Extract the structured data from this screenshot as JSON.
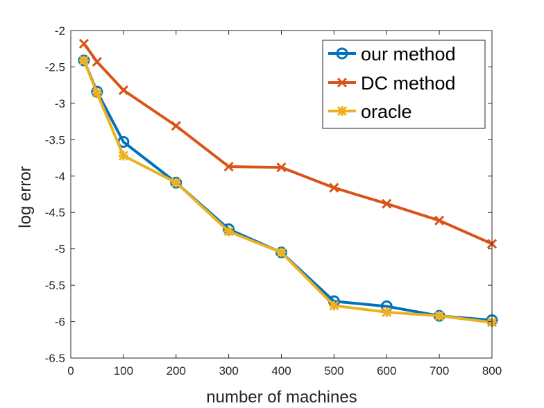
{
  "chart_data": {
    "type": "line",
    "title": "",
    "xlabel": "number of machines",
    "ylabel": "log error",
    "xlim": [
      0,
      800
    ],
    "ylim": [
      -6.5,
      -2
    ],
    "xticks": [
      0,
      100,
      200,
      300,
      400,
      500,
      600,
      700,
      800
    ],
    "yticks": [
      -6.5,
      -6,
      -5.5,
      -5,
      -4.5,
      -4,
      -3.5,
      -3,
      -2.5,
      -2
    ],
    "xtick_labels": [
      "0",
      "100",
      "200",
      "300",
      "400",
      "500",
      "600",
      "700",
      "800"
    ],
    "ytick_labels": [
      "-6.5",
      "-6",
      "-5.5",
      "-5",
      "-4.5",
      "-4",
      "-3.5",
      "-3",
      "-2.5",
      "-2"
    ],
    "grid": false,
    "legend_position": "top-right",
    "x": [
      25,
      50,
      100,
      200,
      300,
      400,
      500,
      600,
      700,
      800
    ],
    "series": [
      {
        "name": "our method",
        "color": "#0072BD",
        "marker": "circle",
        "values": [
          -2.41,
          -2.84,
          -3.53,
          -4.09,
          -4.73,
          -5.05,
          -5.72,
          -5.79,
          -5.92,
          -5.98
        ]
      },
      {
        "name": "DC method",
        "color": "#D95319",
        "marker": "x",
        "values": [
          -2.18,
          -2.43,
          -2.82,
          -3.31,
          -3.87,
          -3.88,
          -4.16,
          -4.38,
          -4.61,
          -4.93
        ]
      },
      {
        "name": "oracle",
        "color": "#EDB120",
        "marker": "star",
        "values": [
          -2.41,
          -2.86,
          -3.72,
          -4.09,
          -4.76,
          -5.05,
          -5.78,
          -5.87,
          -5.92,
          -6.01
        ]
      }
    ]
  }
}
